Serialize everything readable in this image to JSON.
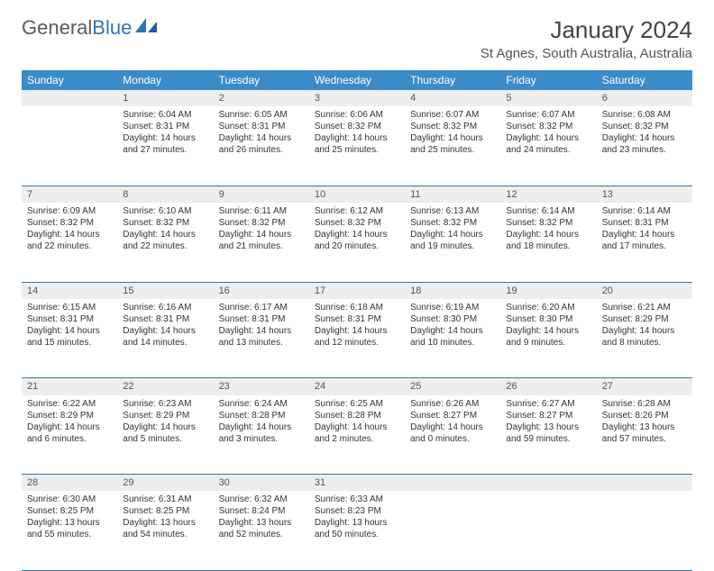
{
  "brand": {
    "word1": "General",
    "word2": "Blue"
  },
  "header": {
    "title": "January 2024",
    "location": "St Agnes, South Australia, Australia"
  },
  "day_headers": [
    "Sunday",
    "Monday",
    "Tuesday",
    "Wednesday",
    "Thursday",
    "Friday",
    "Saturday"
  ],
  "colors": {
    "header_bg": "#3b8bc9",
    "row_border": "#2e75b6",
    "daynum_bg": "#eeeeee",
    "brand_gray": "#5a5a5a",
    "brand_blue": "#2e75b6"
  },
  "weeks": [
    {
      "nums": [
        "",
        "1",
        "2",
        "3",
        "4",
        "5",
        "6"
      ],
      "cells": [
        null,
        {
          "sunrise": "Sunrise: 6:04 AM",
          "sunset": "Sunset: 8:31 PM",
          "day1": "Daylight: 14 hours",
          "day2": "and 27 minutes."
        },
        {
          "sunrise": "Sunrise: 6:05 AM",
          "sunset": "Sunset: 8:31 PM",
          "day1": "Daylight: 14 hours",
          "day2": "and 26 minutes."
        },
        {
          "sunrise": "Sunrise: 6:06 AM",
          "sunset": "Sunset: 8:32 PM",
          "day1": "Daylight: 14 hours",
          "day2": "and 25 minutes."
        },
        {
          "sunrise": "Sunrise: 6:07 AM",
          "sunset": "Sunset: 8:32 PM",
          "day1": "Daylight: 14 hours",
          "day2": "and 25 minutes."
        },
        {
          "sunrise": "Sunrise: 6:07 AM",
          "sunset": "Sunset: 8:32 PM",
          "day1": "Daylight: 14 hours",
          "day2": "and 24 minutes."
        },
        {
          "sunrise": "Sunrise: 6:08 AM",
          "sunset": "Sunset: 8:32 PM",
          "day1": "Daylight: 14 hours",
          "day2": "and 23 minutes."
        }
      ]
    },
    {
      "nums": [
        "7",
        "8",
        "9",
        "10",
        "11",
        "12",
        "13"
      ],
      "cells": [
        {
          "sunrise": "Sunrise: 6:09 AM",
          "sunset": "Sunset: 8:32 PM",
          "day1": "Daylight: 14 hours",
          "day2": "and 22 minutes."
        },
        {
          "sunrise": "Sunrise: 6:10 AM",
          "sunset": "Sunset: 8:32 PM",
          "day1": "Daylight: 14 hours",
          "day2": "and 22 minutes."
        },
        {
          "sunrise": "Sunrise: 6:11 AM",
          "sunset": "Sunset: 8:32 PM",
          "day1": "Daylight: 14 hours",
          "day2": "and 21 minutes."
        },
        {
          "sunrise": "Sunrise: 6:12 AM",
          "sunset": "Sunset: 8:32 PM",
          "day1": "Daylight: 14 hours",
          "day2": "and 20 minutes."
        },
        {
          "sunrise": "Sunrise: 6:13 AM",
          "sunset": "Sunset: 8:32 PM",
          "day1": "Daylight: 14 hours",
          "day2": "and 19 minutes."
        },
        {
          "sunrise": "Sunrise: 6:14 AM",
          "sunset": "Sunset: 8:32 PM",
          "day1": "Daylight: 14 hours",
          "day2": "and 18 minutes."
        },
        {
          "sunrise": "Sunrise: 6:14 AM",
          "sunset": "Sunset: 8:31 PM",
          "day1": "Daylight: 14 hours",
          "day2": "and 17 minutes."
        }
      ]
    },
    {
      "nums": [
        "14",
        "15",
        "16",
        "17",
        "18",
        "19",
        "20"
      ],
      "cells": [
        {
          "sunrise": "Sunrise: 6:15 AM",
          "sunset": "Sunset: 8:31 PM",
          "day1": "Daylight: 14 hours",
          "day2": "and 15 minutes."
        },
        {
          "sunrise": "Sunrise: 6:16 AM",
          "sunset": "Sunset: 8:31 PM",
          "day1": "Daylight: 14 hours",
          "day2": "and 14 minutes."
        },
        {
          "sunrise": "Sunrise: 6:17 AM",
          "sunset": "Sunset: 8:31 PM",
          "day1": "Daylight: 14 hours",
          "day2": "and 13 minutes."
        },
        {
          "sunrise": "Sunrise: 6:18 AM",
          "sunset": "Sunset: 8:31 PM",
          "day1": "Daylight: 14 hours",
          "day2": "and 12 minutes."
        },
        {
          "sunrise": "Sunrise: 6:19 AM",
          "sunset": "Sunset: 8:30 PM",
          "day1": "Daylight: 14 hours",
          "day2": "and 10 minutes."
        },
        {
          "sunrise": "Sunrise: 6:20 AM",
          "sunset": "Sunset: 8:30 PM",
          "day1": "Daylight: 14 hours",
          "day2": "and 9 minutes."
        },
        {
          "sunrise": "Sunrise: 6:21 AM",
          "sunset": "Sunset: 8:29 PM",
          "day1": "Daylight: 14 hours",
          "day2": "and 8 minutes."
        }
      ]
    },
    {
      "nums": [
        "21",
        "22",
        "23",
        "24",
        "25",
        "26",
        "27"
      ],
      "cells": [
        {
          "sunrise": "Sunrise: 6:22 AM",
          "sunset": "Sunset: 8:29 PM",
          "day1": "Daylight: 14 hours",
          "day2": "and 6 minutes."
        },
        {
          "sunrise": "Sunrise: 6:23 AM",
          "sunset": "Sunset: 8:29 PM",
          "day1": "Daylight: 14 hours",
          "day2": "and 5 minutes."
        },
        {
          "sunrise": "Sunrise: 6:24 AM",
          "sunset": "Sunset: 8:28 PM",
          "day1": "Daylight: 14 hours",
          "day2": "and 3 minutes."
        },
        {
          "sunrise": "Sunrise: 6:25 AM",
          "sunset": "Sunset: 8:28 PM",
          "day1": "Daylight: 14 hours",
          "day2": "and 2 minutes."
        },
        {
          "sunrise": "Sunrise: 6:26 AM",
          "sunset": "Sunset: 8:27 PM",
          "day1": "Daylight: 14 hours",
          "day2": "and 0 minutes."
        },
        {
          "sunrise": "Sunrise: 6:27 AM",
          "sunset": "Sunset: 8:27 PM",
          "day1": "Daylight: 13 hours",
          "day2": "and 59 minutes."
        },
        {
          "sunrise": "Sunrise: 6:28 AM",
          "sunset": "Sunset: 8:26 PM",
          "day1": "Daylight: 13 hours",
          "day2": "and 57 minutes."
        }
      ]
    },
    {
      "nums": [
        "28",
        "29",
        "30",
        "31",
        "",
        "",
        ""
      ],
      "cells": [
        {
          "sunrise": "Sunrise: 6:30 AM",
          "sunset": "Sunset: 8:25 PM",
          "day1": "Daylight: 13 hours",
          "day2": "and 55 minutes."
        },
        {
          "sunrise": "Sunrise: 6:31 AM",
          "sunset": "Sunset: 8:25 PM",
          "day1": "Daylight: 13 hours",
          "day2": "and 54 minutes."
        },
        {
          "sunrise": "Sunrise: 6:32 AM",
          "sunset": "Sunset: 8:24 PM",
          "day1": "Daylight: 13 hours",
          "day2": "and 52 minutes."
        },
        {
          "sunrise": "Sunrise: 6:33 AM",
          "sunset": "Sunset: 8:23 PM",
          "day1": "Daylight: 13 hours",
          "day2": "and 50 minutes."
        },
        null,
        null,
        null
      ]
    }
  ]
}
